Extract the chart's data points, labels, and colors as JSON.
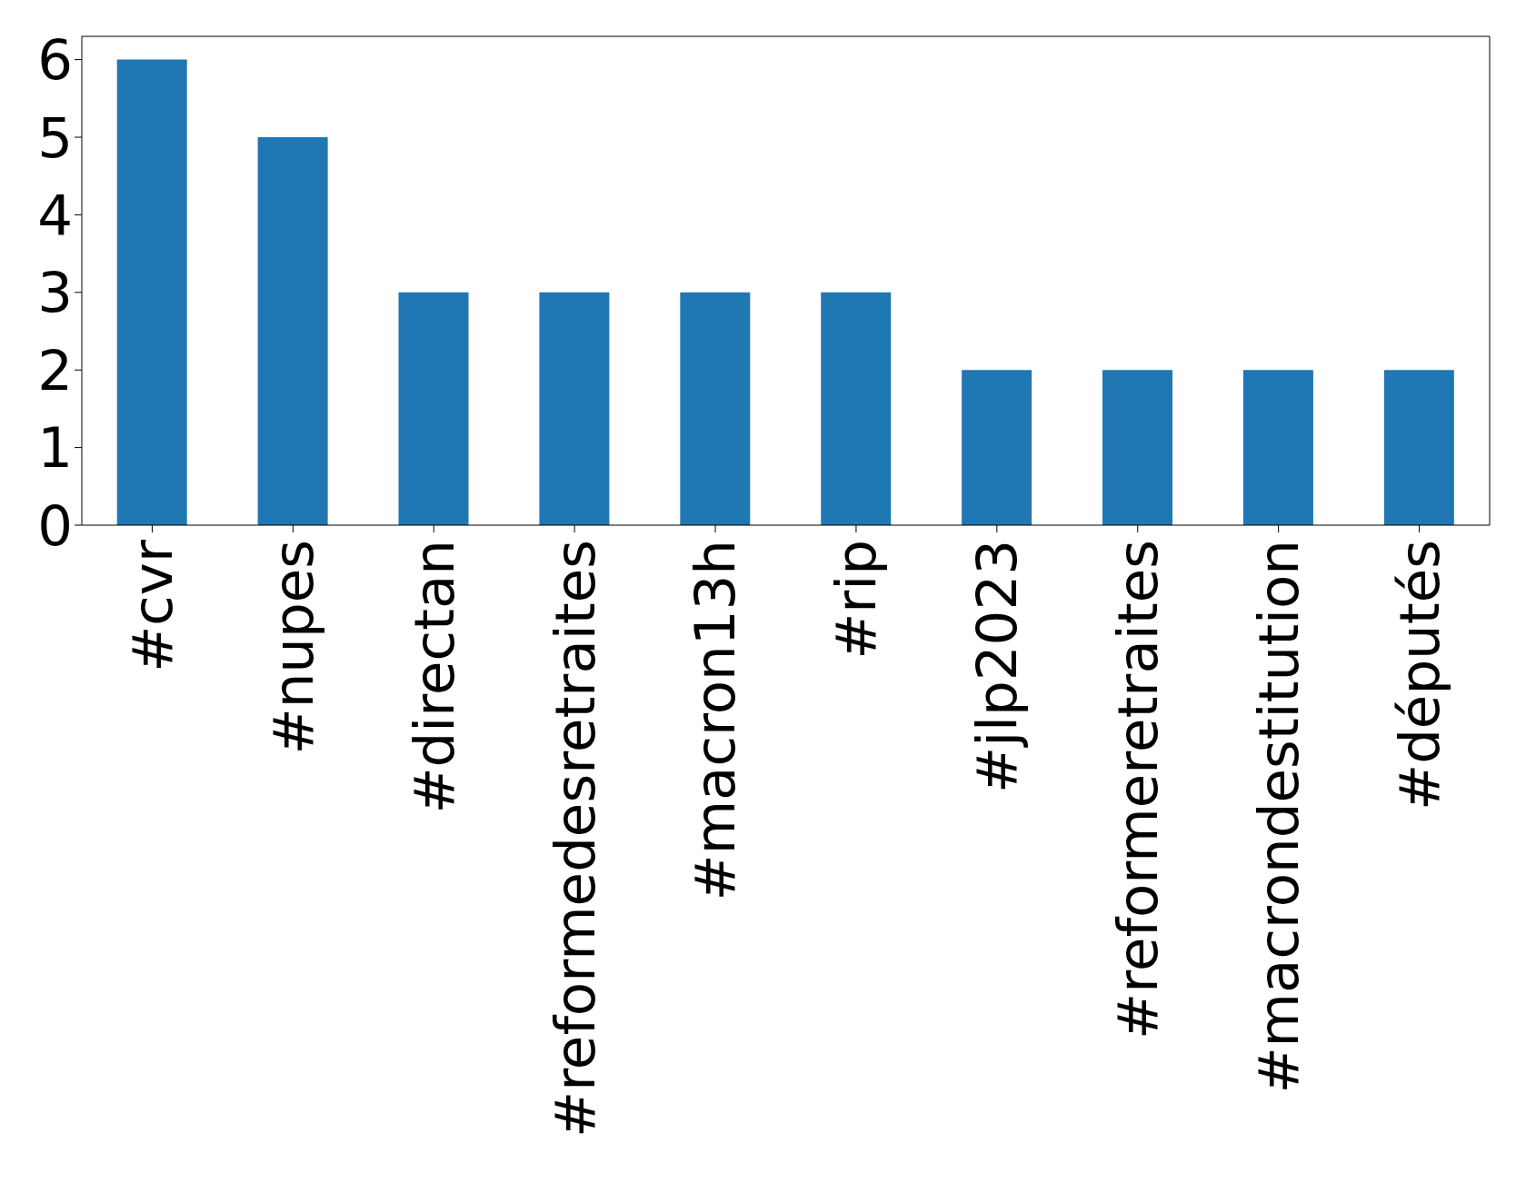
{
  "chart_data": {
    "type": "bar",
    "categories": [
      "#cvr",
      "#nupes",
      "#directan",
      "#reformedesretraites",
      "#macron13h",
      "#rip",
      "#jlp2023",
      "#reformeretraites",
      "#macrondestitution",
      "#députés"
    ],
    "values": [
      6,
      5,
      3,
      3,
      3,
      3,
      2,
      2,
      2,
      2
    ],
    "color": "#1f77b4",
    "ylim": [
      0,
      6.3
    ],
    "yticks": [
      0,
      1,
      2,
      3,
      4,
      5,
      6
    ],
    "grid": false
  }
}
